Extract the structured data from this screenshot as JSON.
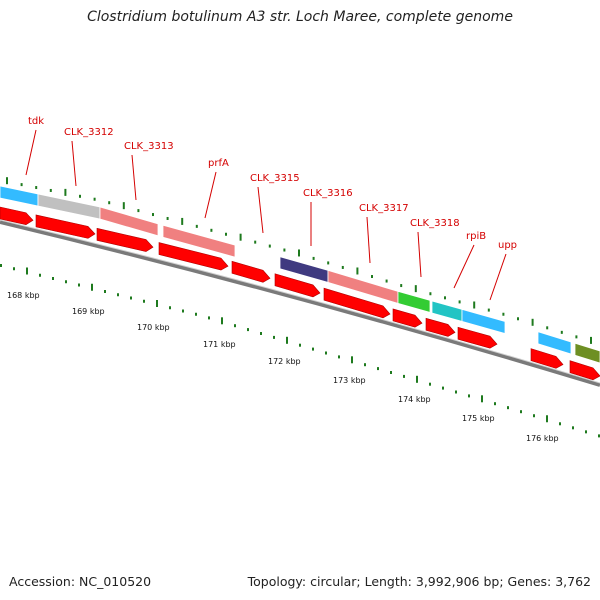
{
  "title": "Clostridium botulinum A3 str. Loch Maree, complete genome",
  "footer": {
    "accession": "Accession: NC_010520",
    "summary": "Topology: circular; Length: 3,992,906 bp; Genes: 3,762"
  },
  "colors": {
    "backbone": "#7a7a7a",
    "tick": "#1e7a1e",
    "label": "#d40000",
    "cds": "#ff0000"
  },
  "gene_labels": [
    {
      "name": "tdk",
      "color": "#33bbff"
    },
    {
      "name": "CLK_3312",
      "color": "#c0c0c0"
    },
    {
      "name": "CLK_3313",
      "color": "#f08080"
    },
    {
      "name": "prfA",
      "color": "#f08080"
    },
    {
      "name": "CLK_3315",
      "color": "#f08080"
    },
    {
      "name": "CLK_3316",
      "color": "#3f3a80"
    },
    {
      "name": "CLK_3317",
      "color": "#f08080"
    },
    {
      "name": "CLK_3318",
      "color": "#33cc33"
    },
    {
      "name": "rpiB",
      "color": "#22c4c4"
    },
    {
      "name": "upp",
      "color": "#33bbff"
    }
  ],
  "scale_labels": [
    "168 kbp",
    "169 kbp",
    "170 kbp",
    "171 kbp",
    "172 kbp",
    "173 kbp",
    "174 kbp",
    "175 kbp",
    "176 kbp"
  ]
}
